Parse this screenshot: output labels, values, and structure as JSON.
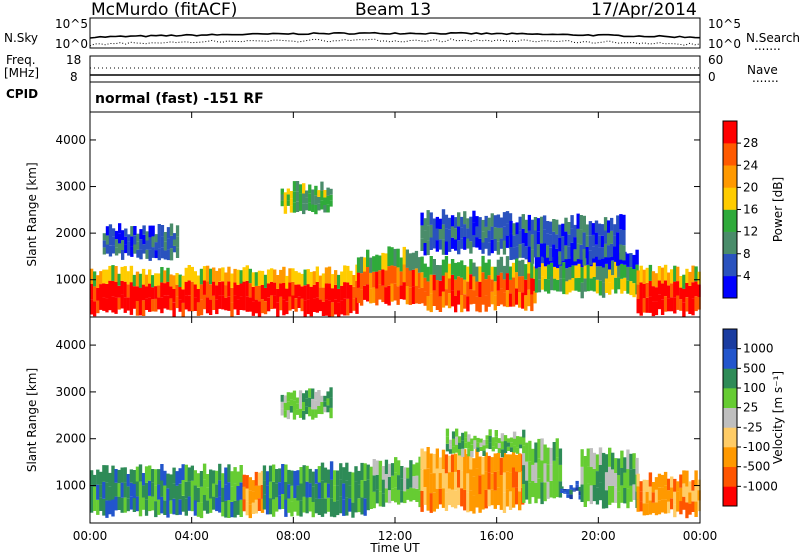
{
  "header": {
    "site": "McMurdo (fitACF)",
    "beam": "Beam 13",
    "date": "17/Apr/2014"
  },
  "panels": {
    "nsky_label": "N.Sky",
    "nsearch_label": "N.Search",
    "freq_label_1": "Freq.",
    "freq_label_2": "[MHz]",
    "nave_label": "Nave",
    "cpid_label": "CPID",
    "mode_text": "normal (fast) -151 RF",
    "noise_top_left": "10^5",
    "noise_bottom_left": "10^0",
    "noise_top_right": "10^5",
    "noise_bottom_right": "10^0",
    "freq_top": "18",
    "freq_bottom": "8",
    "nave_top": "60",
    "nave_bottom": "0",
    "dotted_marker": "......."
  },
  "colors": {
    "power": [
      "#0000ff",
      "#2a52be",
      "#4a8c6a",
      "#2faa3a",
      "#ffcc00",
      "#ff9900",
      "#ff5a00",
      "#ff0000"
    ],
    "velocity": [
      "#ff0000",
      "#ff5500",
      "#ff9900",
      "#ffcc66",
      "#bfbfbf",
      "#66cc33",
      "#2e8b57",
      "#2255cc",
      "#1a3ca0"
    ]
  },
  "chart_data": [
    {
      "type": "heatmap",
      "quantity": "Power",
      "ylabel": "Slant Range [km]",
      "ylim": [
        200,
        4600
      ],
      "yticks": [
        1000,
        2000,
        3000,
        4000
      ],
      "colorbar_label": "Power [dB]",
      "colorbar_ticks": [
        "4",
        "8",
        "12",
        "16",
        "20",
        "24",
        "28"
      ],
      "colorbar_range": [
        0,
        32
      ],
      "bands": [
        {
          "t_start": 0.0,
          "t_end": 10.5,
          "range_low": 300,
          "range_high": 1200,
          "level": 7
        },
        {
          "t_start": 10.5,
          "t_end": 13.0,
          "range_low": 500,
          "range_high": 1600,
          "level": 6
        },
        {
          "t_start": 13.0,
          "t_end": 17.5,
          "range_low": 400,
          "range_high": 1400,
          "level": 6
        },
        {
          "t_start": 17.5,
          "t_end": 21.5,
          "range_low": 700,
          "range_high": 1600,
          "level": 3
        },
        {
          "t_start": 21.5,
          "t_end": 24.0,
          "range_low": 300,
          "range_high": 1200,
          "level": 7
        }
      ],
      "patches": [
        {
          "t_start": 0.5,
          "t_end": 3.5,
          "range_low": 1500,
          "range_high": 2100,
          "level": 1
        },
        {
          "t_start": 7.5,
          "t_end": 9.5,
          "range_low": 2500,
          "range_high": 3000,
          "level": 3
        },
        {
          "t_start": 13.0,
          "t_end": 16.5,
          "range_low": 1600,
          "range_high": 2400,
          "level": 1
        },
        {
          "t_start": 16.5,
          "t_end": 21.0,
          "range_low": 1400,
          "range_high": 2300,
          "level": 1
        }
      ]
    },
    {
      "type": "heatmap",
      "quantity": "Velocity",
      "ylabel": "Slant Range [km]",
      "ylim": [
        200,
        4600
      ],
      "yticks": [
        1000,
        2000,
        3000,
        4000
      ],
      "xlabel": "Time UT",
      "xticks": [
        "00:00",
        "04:00",
        "08:00",
        "12:00",
        "16:00",
        "20:00",
        "00:00"
      ],
      "xlim": [
        0,
        24
      ],
      "colorbar_label": "Velocity [m s⁻¹]",
      "colorbar_ticks": [
        "-1000",
        "-500",
        "-100",
        "-25",
        "25",
        "100",
        "500",
        "1000"
      ],
      "bands": [
        {
          "t_start": 0.0,
          "t_end": 6.0,
          "range_low": 400,
          "range_high": 1350,
          "level": 6
        },
        {
          "t_start": 6.0,
          "t_end": 6.8,
          "range_low": 400,
          "range_high": 1200,
          "level": 2
        },
        {
          "t_start": 6.8,
          "t_end": 11.0,
          "range_low": 400,
          "range_high": 1400,
          "level": 6
        },
        {
          "t_start": 11.0,
          "t_end": 13.0,
          "range_low": 600,
          "range_high": 1500,
          "level": 5
        },
        {
          "t_start": 13.0,
          "t_end": 17.0,
          "range_low": 500,
          "range_high": 1700,
          "level": 2
        },
        {
          "t_start": 17.0,
          "t_end": 18.5,
          "range_low": 700,
          "range_high": 1900,
          "level": 5
        },
        {
          "t_start": 18.5,
          "t_end": 19.3,
          "range_low": 800,
          "range_high": 1000,
          "level": 7
        },
        {
          "t_start": 19.3,
          "t_end": 21.5,
          "range_low": 600,
          "range_high": 1700,
          "level": 5
        },
        {
          "t_start": 21.5,
          "t_end": 24.0,
          "range_low": 400,
          "range_high": 1200,
          "level": 2
        }
      ],
      "patches": [
        {
          "t_start": 7.5,
          "t_end": 9.5,
          "range_low": 2500,
          "range_high": 3000,
          "level": 5
        },
        {
          "t_start": 14.0,
          "t_end": 17.0,
          "range_low": 1700,
          "range_high": 2100,
          "level": 5
        }
      ]
    }
  ]
}
